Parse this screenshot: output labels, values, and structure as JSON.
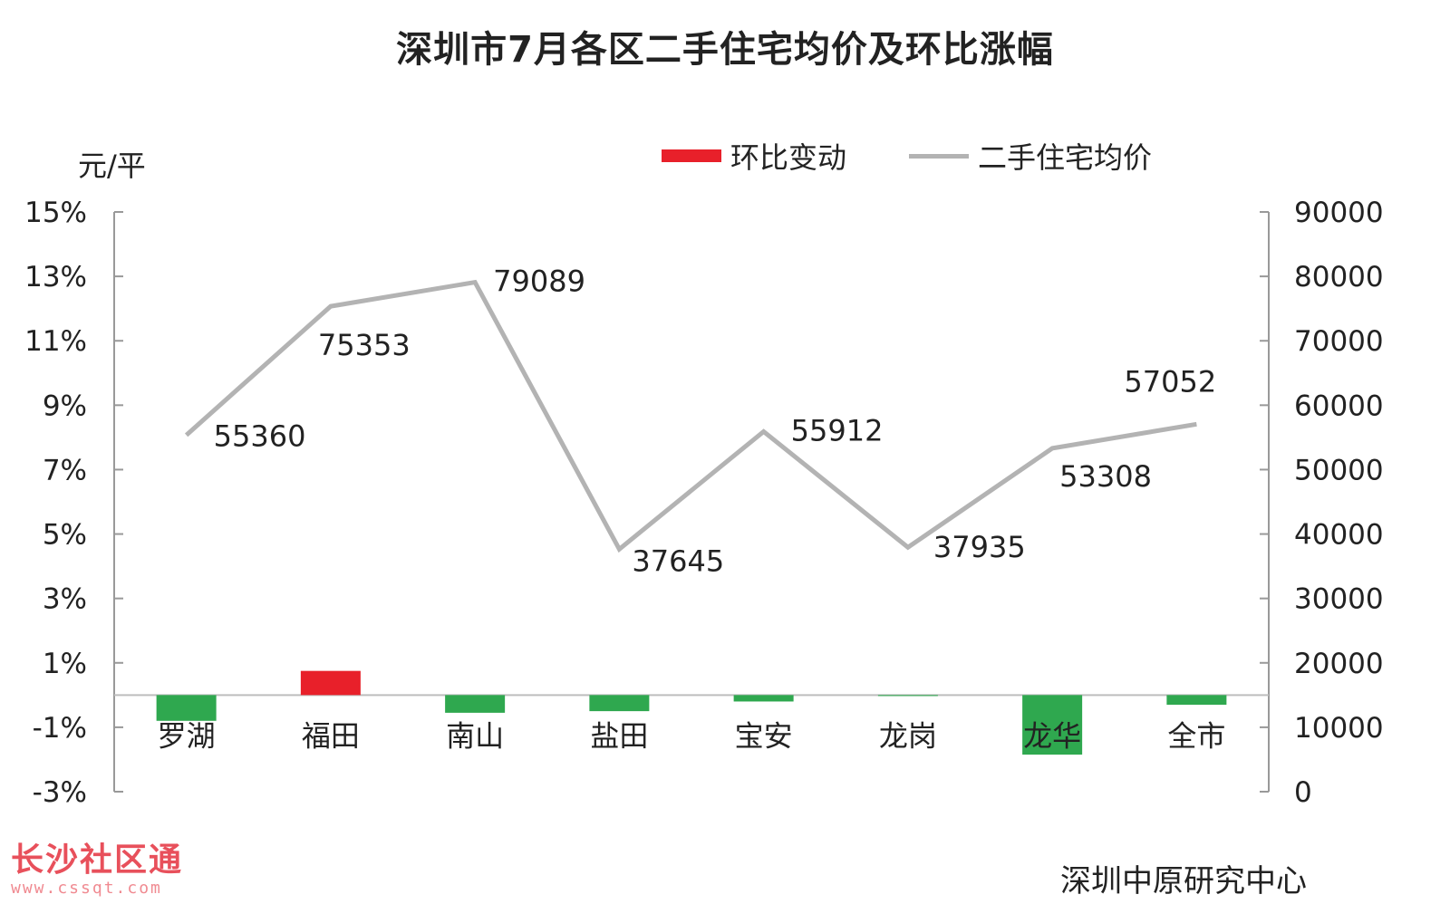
{
  "title": "深圳市7月各区二手住宅均价及环比涨幅",
  "unit_label": "元/平",
  "source": "深圳中原研究中心",
  "watermark": {
    "text": "长沙社区通",
    "url": "www.cssqt.com"
  },
  "colors": {
    "positive_bar": "#e8202a",
    "negative_bar": "#2fa84f",
    "price_line": "#b3b3b3",
    "axis": "#999999"
  },
  "legend": [
    {
      "label": "环比变动",
      "kind": "bar",
      "color": "#e8202a"
    },
    {
      "label": "二手住宅均价",
      "kind": "line",
      "color": "#b3b3b3"
    }
  ],
  "chart_data": {
    "type": "bar",
    "title": "深圳市7月各区二手住宅均价及环比涨幅",
    "categories": [
      "罗湖",
      "福田",
      "南山",
      "盐田",
      "宝安",
      "龙岗",
      "龙华",
      "全市"
    ],
    "y_left": {
      "label": "元/平",
      "range": [
        -3,
        15
      ],
      "ticks": [
        "15%",
        "13%",
        "11%",
        "9%",
        "7%",
        "5%",
        "3%",
        "1%",
        "-1%",
        "-3%"
      ],
      "tick_values": [
        15,
        13,
        11,
        9,
        7,
        5,
        3,
        1,
        -1,
        -3
      ]
    },
    "y_right": {
      "range": [
        0,
        90000
      ],
      "ticks": [
        "90000",
        "80000",
        "70000",
        "60000",
        "50000",
        "40000",
        "30000",
        "20000",
        "10000",
        "0"
      ],
      "tick_values": [
        90000,
        80000,
        70000,
        60000,
        50000,
        40000,
        30000,
        20000,
        10000,
        0
      ]
    },
    "series": [
      {
        "name": "环比变动",
        "type": "bar",
        "axis": "left",
        "values": [
          -0.8,
          0.75,
          -0.55,
          -0.5,
          -0.2,
          -0.03,
          -1.85,
          -0.3
        ]
      },
      {
        "name": "二手住宅均价",
        "type": "line",
        "axis": "right",
        "values": [
          55360,
          75353,
          79089,
          37645,
          55912,
          37935,
          53308,
          57052
        ],
        "labels": [
          "55360",
          "75353",
          "79089",
          "37645",
          "55912",
          "37935",
          "53308",
          "57052"
        ]
      }
    ],
    "grid": false,
    "legend_position": "top-right"
  }
}
